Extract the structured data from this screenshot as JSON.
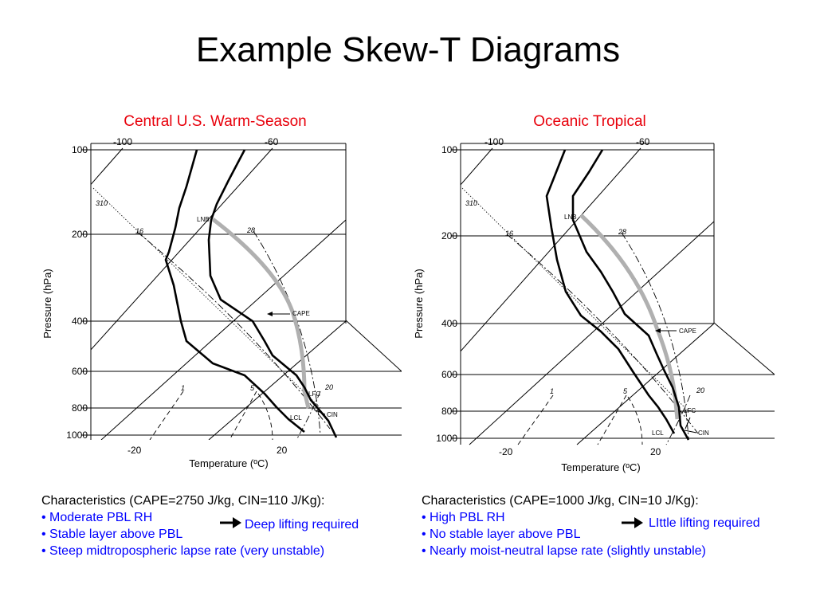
{
  "slide": {
    "title": "Example Skew-T Diagrams"
  },
  "left": {
    "panel_title": "Central U.S. Warm-Season",
    "diagram": {
      "pressure_ticks": [
        "100",
        "200",
        "400",
        "600",
        "800",
        "1000"
      ],
      "top_temp_ticks": [
        "-100",
        "-60"
      ],
      "bottom_temp_ticks": [
        "-20",
        "20"
      ],
      "dry_adiabat_label": "310",
      "mixing_ratio_labels": [
        "16",
        "28",
        "1",
        "5",
        "20"
      ],
      "ylabel": "Pressure (hPa)",
      "xlabel": "Temperature (ºC)",
      "annotations": {
        "lnb": "LNB",
        "cape": "CAPE",
        "lfc": "LFC",
        "lcl": "LCL",
        "cin": "CIN"
      }
    },
    "characteristics": {
      "heading": "Characteristics (CAPE=2750 J/kg, CIN=110 J/Kg):",
      "bullets": [
        "• Moderate PBL RH",
        "• Stable layer above PBL",
        "• Steep midtropospheric lapse rate (very unstable)"
      ],
      "note": "Deep lifting required"
    }
  },
  "right": {
    "panel_title": "Oceanic Tropical",
    "diagram": {
      "pressure_ticks": [
        "100",
        "200",
        "400",
        "600",
        "800",
        "1000"
      ],
      "top_temp_ticks": [
        "-100",
        "-60"
      ],
      "bottom_temp_ticks": [
        "-20",
        "20"
      ],
      "dry_adiabat_label": "310",
      "mixing_ratio_labels": [
        "16",
        "28",
        "1",
        "5",
        "20"
      ],
      "ylabel": "Pressure (hPa)",
      "xlabel": "Temperature (ºC)",
      "annotations": {
        "lnb": "LNB",
        "cape": "CAPE",
        "lfc": "LFC",
        "lcl": "LCL",
        "cin": "CIN"
      }
    },
    "characteristics": {
      "heading": "Characteristics (CAPE=1000 J/kg, CIN=10 J/Kg):",
      "bullets": [
        "• High PBL RH",
        "• No stable layer above PBL",
        "• Nearly moist-neutral lapse rate (slightly unstable)"
      ],
      "note": "LIttle lifting required"
    }
  },
  "colors": {
    "panel_title": "#e8000b",
    "bullet_text": "#0000ff",
    "parcel_curve": "#b0b0b0",
    "sounding": "#000000"
  }
}
